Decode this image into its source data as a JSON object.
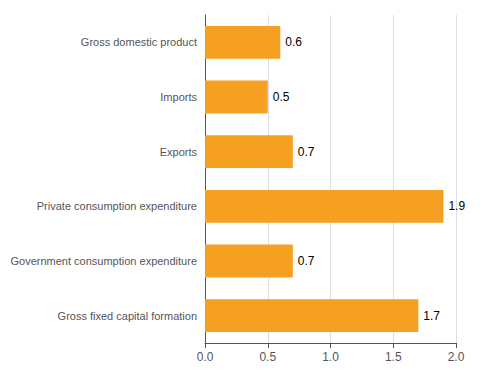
{
  "chart_data": {
    "type": "bar",
    "orientation": "horizontal",
    "categories": [
      "Gross fixed capital formation",
      "Government consumption expenditure",
      "Private consumption expenditure",
      "Exports",
      "Imports",
      "Gross domestic product"
    ],
    "values": [
      1.7,
      0.7,
      1.9,
      0.7,
      0.5,
      0.6
    ],
    "color": "#F5A020",
    "xlim": [
      0,
      2.0
    ],
    "xticks": [
      {
        "value": 0.0,
        "label": "0.0"
      },
      0.5,
      {
        "value": 1.0,
        "label": "1.0"
      },
      1.5,
      {
        "value": 2.0,
        "label": "2.0"
      }
    ],
    "grid": true,
    "data_labels": true
  }
}
